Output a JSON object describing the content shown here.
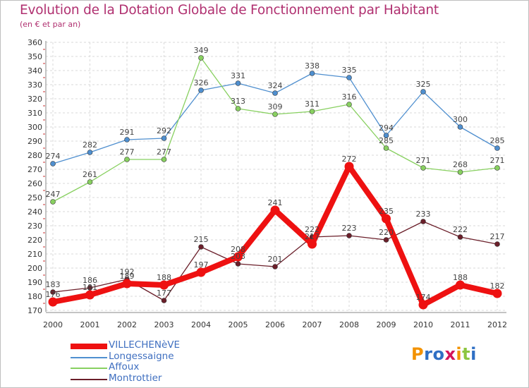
{
  "chart_data": {
    "type": "line",
    "title": "Evolution de la Dotation Globale de Fonctionnement par Habitant",
    "subtitle": "(en € et par an)",
    "xlabel": "",
    "ylabel": "",
    "x": [
      "2000",
      "2001",
      "2002",
      "2003",
      "2004",
      "2005",
      "2006",
      "2007",
      "2008",
      "2009",
      "2010",
      "2011",
      "2012"
    ],
    "ylim": [
      170,
      360
    ],
    "yticks": [
      170,
      180,
      190,
      200,
      210,
      220,
      230,
      240,
      250,
      260,
      270,
      280,
      290,
      300,
      310,
      320,
      330,
      340,
      350,
      360
    ],
    "grid": true,
    "legend_position": "bottom-left",
    "series": [
      {
        "name": "VILLECHENèVE",
        "color": "#ee1111",
        "values": [
          176,
          181,
          189,
          188,
          197,
          208,
          241,
          217,
          272,
          235,
          174,
          188,
          182
        ]
      },
      {
        "name": "Longessaigne",
        "color": "#4f8fcf",
        "values": [
          274,
          282,
          291,
          292,
          326,
          331,
          324,
          338,
          335,
          294,
          325,
          300,
          285
        ]
      },
      {
        "name": "Affoux",
        "color": "#88d060",
        "values": [
          247,
          261,
          277,
          277,
          349,
          313,
          309,
          311,
          316,
          285,
          271,
          268,
          271
        ]
      },
      {
        "name": "Montrottier",
        "color": "#6b1f2a",
        "values": [
          183,
          186,
          192,
          177,
          215,
          203,
          201,
          222,
          223,
          220,
          233,
          222,
          217
        ]
      }
    ]
  },
  "legend": {
    "items": [
      {
        "name": "VILLECHENèVE",
        "color": "#ee1111"
      },
      {
        "name": "Longessaigne",
        "color": "#4f8fcf"
      },
      {
        "name": "Affoux",
        "color": "#88d060"
      },
      {
        "name": "Montrottier",
        "color": "#6b1f2a"
      }
    ]
  },
  "logo": {
    "text": "Proxiti",
    "letter_colors": [
      "#f39200",
      "#2f6fc4",
      "#2f6fc4",
      "#d4145a",
      "#f39200",
      "#8cc63f",
      "#2f6fc4"
    ]
  }
}
